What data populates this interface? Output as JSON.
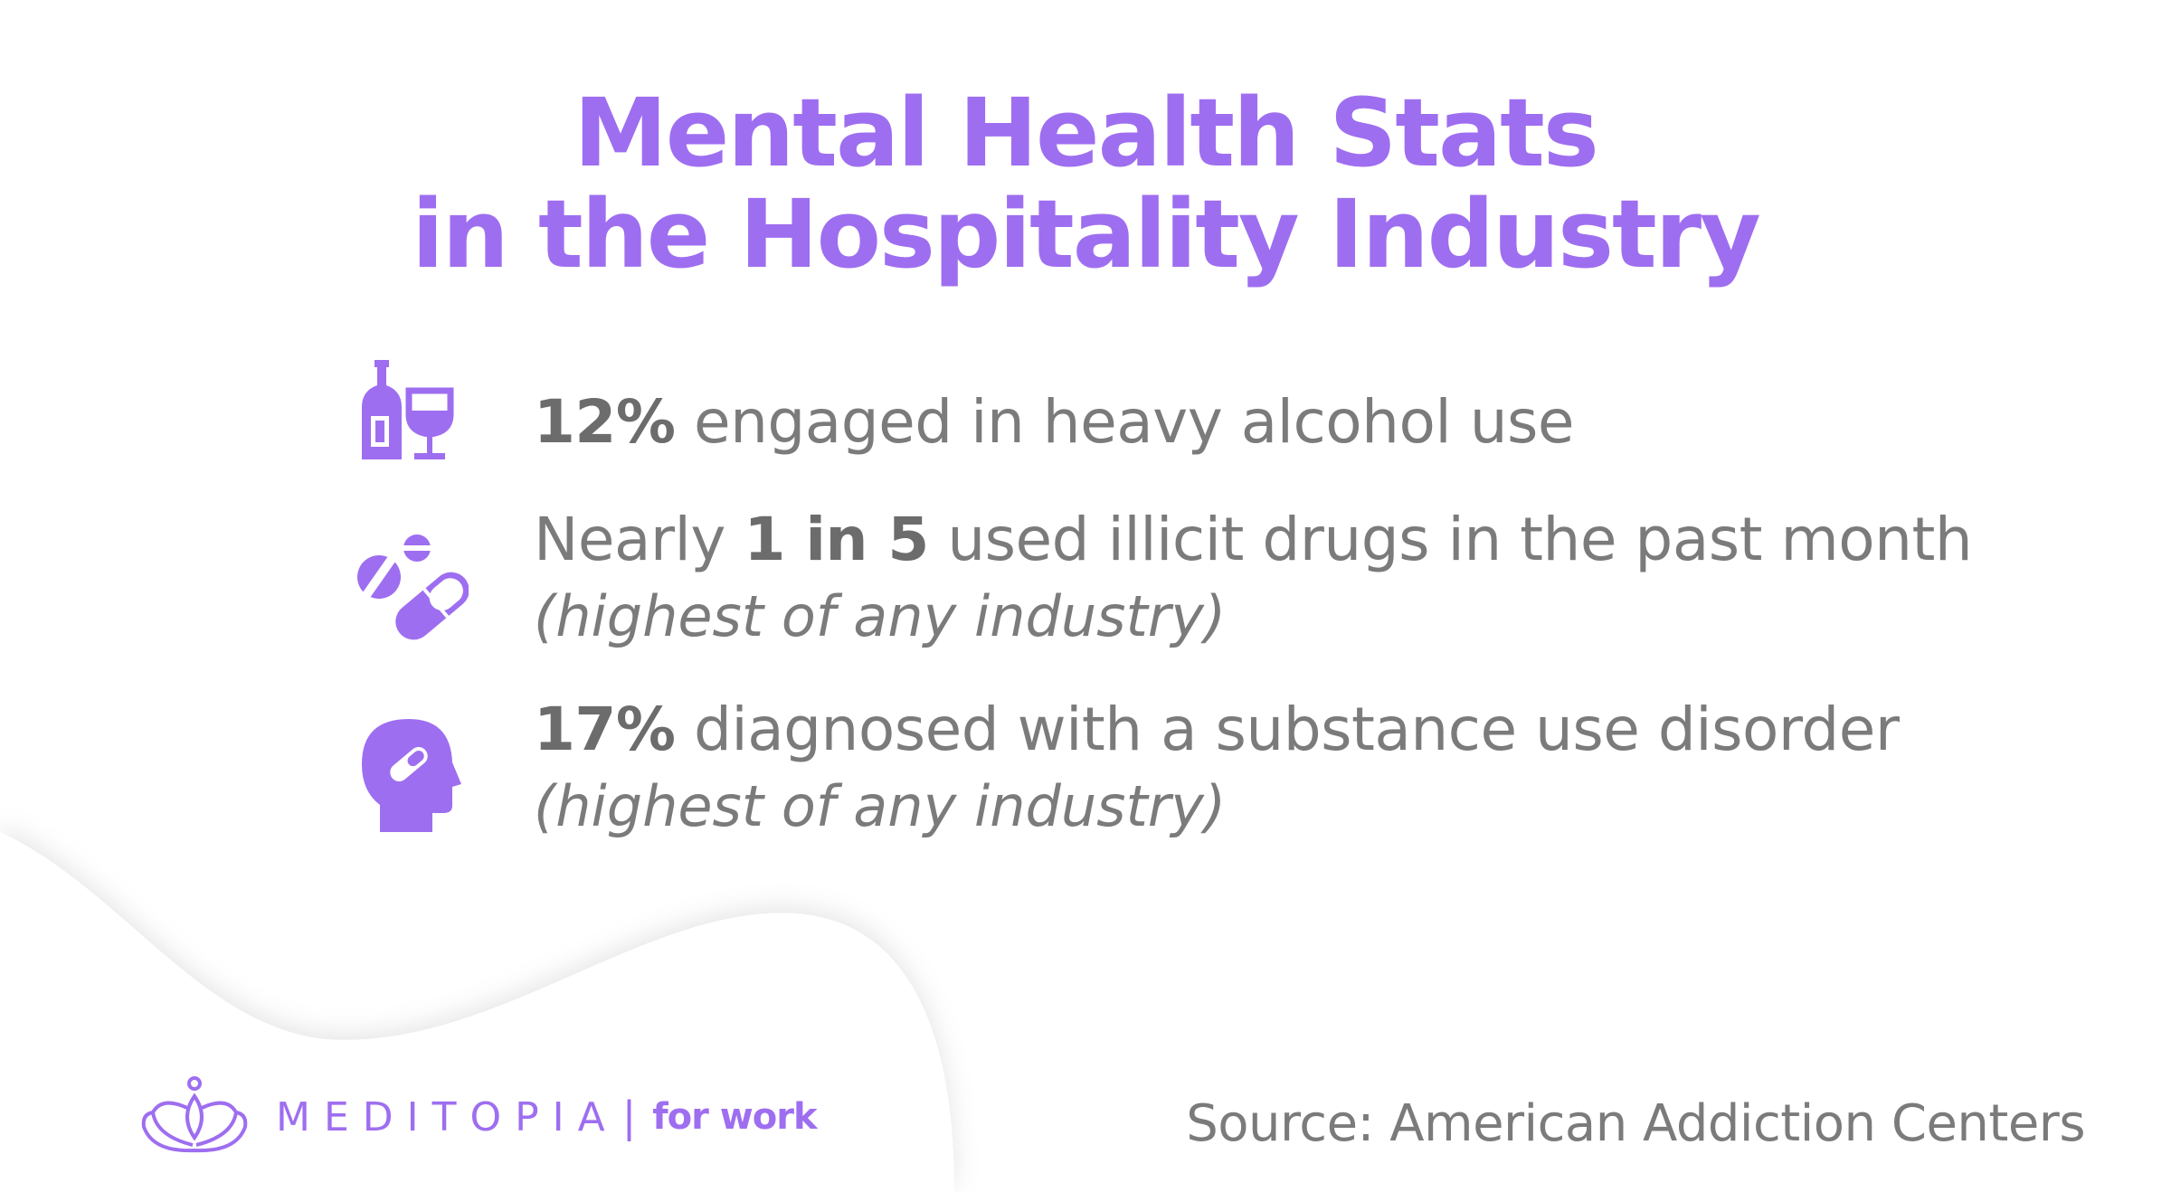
{
  "title": {
    "line1": "Mental Health Stats",
    "line2": "in the Hospitality Industry"
  },
  "stats": [
    {
      "icon": "wine-bottle-glass-icon",
      "bold": "12%",
      "text": " engaged in heavy alcohol use",
      "note": ""
    },
    {
      "icon": "pills-capsule-icon",
      "prefix": "Nearly ",
      "bold": "1 in 5",
      "text": " used illicit drugs in the past month",
      "note": "(highest of any industry)"
    },
    {
      "icon": "head-capsule-icon",
      "bold": "17%",
      "text": " diagnosed with a substance use disorder",
      "note": "(highest of any industry)"
    }
  ],
  "logo": {
    "icon": "lotus-icon",
    "brand": "MEDITOPIA",
    "separator": "|",
    "suffix": "for work"
  },
  "source": "Source: American Addiction Centers",
  "colors": {
    "accent": "#9e6ef0",
    "text": "#7b7b7b",
    "background": "#ffffff"
  }
}
